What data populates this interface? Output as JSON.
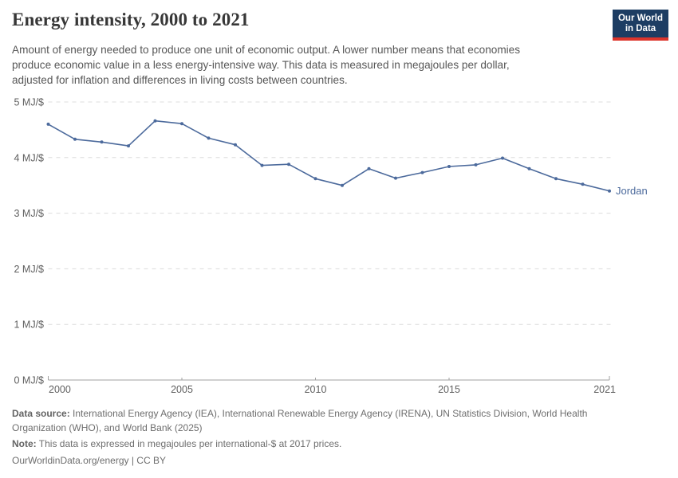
{
  "header": {
    "title": "Energy intensity, 2000 to 2021",
    "subtitle_lines": [
      "Amount of energy needed to produce one unit of economic output. A lower number means that economies",
      "produce economic value in a less energy-intensive way. This data is measured in megajoules per dollar,",
      "adjusted for inflation and differences in living costs between countries."
    ],
    "logo": {
      "line1": "Our World",
      "line2": "in Data",
      "bg_color": "#1d3d63",
      "accent_color": "#dc352c"
    }
  },
  "chart_data": {
    "type": "line",
    "title": "Energy intensity, 2000 to 2021",
    "unit": "MJ/$",
    "entity_label": "Jordan",
    "line_color": "#4c6a9c",
    "grid": "horizontal dashed",
    "legend_position": "end-of-line label",
    "xlim": [
      2000,
      2021
    ],
    "ylim": [
      0,
      5
    ],
    "xticks": [
      2000,
      2005,
      2010,
      2015,
      2021
    ],
    "yticks": [
      0,
      1,
      2,
      3,
      4,
      5
    ],
    "ytick_labels": [
      "0 MJ/$",
      "1 MJ/$",
      "2 MJ/$",
      "3 MJ/$",
      "4 MJ/$",
      "5 MJ/$"
    ],
    "x": [
      2000,
      2001,
      2002,
      2003,
      2004,
      2005,
      2006,
      2007,
      2008,
      2009,
      2010,
      2011,
      2012,
      2013,
      2014,
      2015,
      2016,
      2017,
      2018,
      2019,
      2020,
      2021
    ],
    "series": [
      {
        "name": "Jordan",
        "color": "#4c6a9c",
        "values": [
          4.6,
          4.33,
          4.28,
          4.21,
          4.66,
          4.61,
          4.35,
          4.23,
          3.86,
          3.88,
          3.62,
          3.5,
          3.8,
          3.63,
          3.73,
          3.84,
          3.87,
          3.99,
          3.8,
          3.62,
          3.52,
          3.4
        ]
      }
    ]
  },
  "footer": {
    "source_label": "Data source:",
    "source_text": "International Energy Agency (IEA), International Renewable Energy Agency (IRENA), UN Statistics Division, World Health Organization (WHO), and World Bank (2025)",
    "note_label": "Note:",
    "note_text": "This data is expressed in megajoules per international-$ at 2017 prices.",
    "citation": "OurWorldinData.org/energy | CC BY"
  }
}
